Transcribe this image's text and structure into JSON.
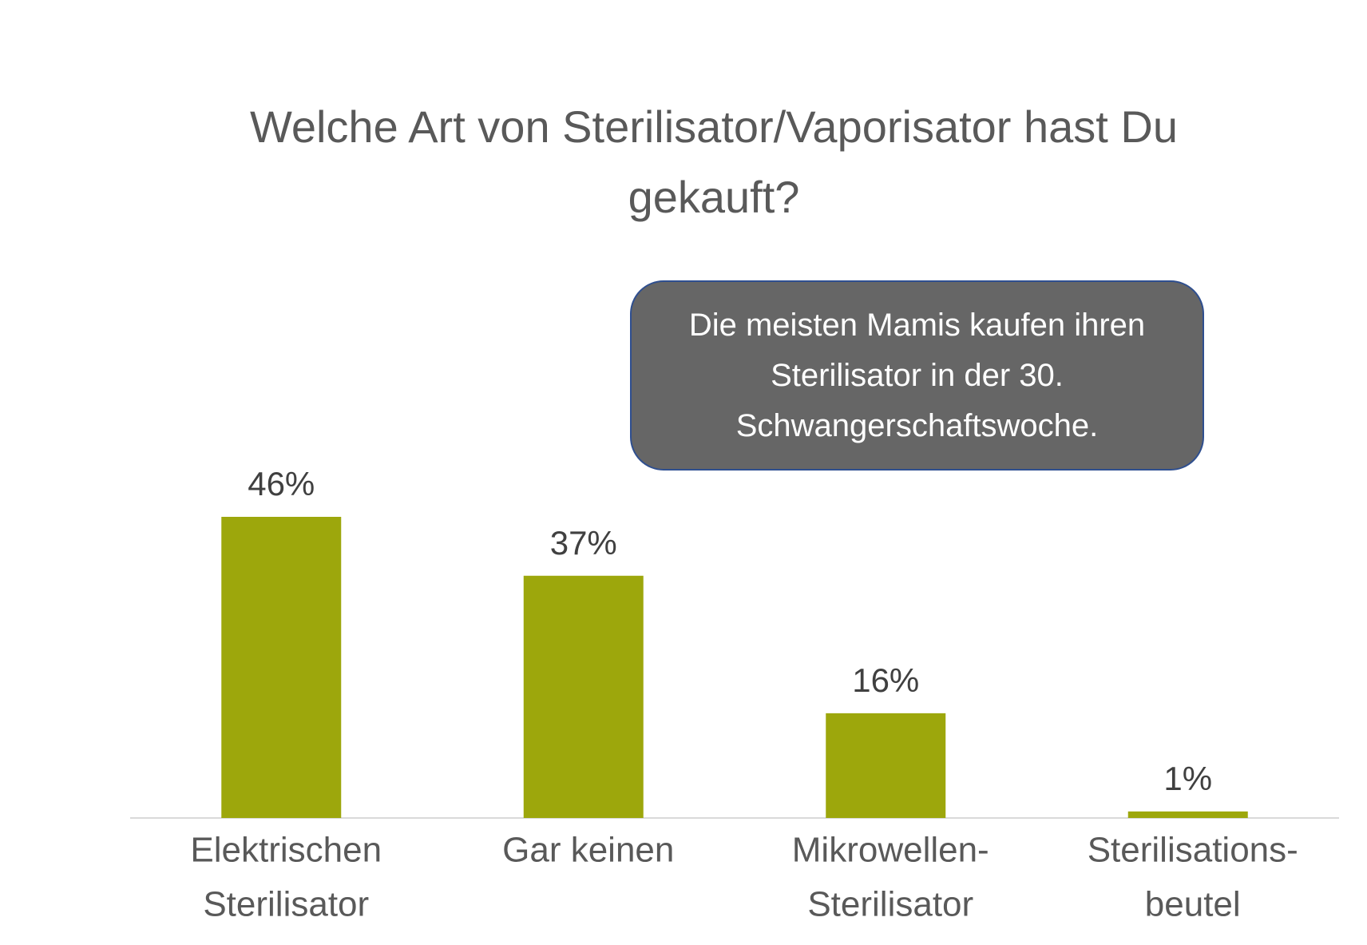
{
  "chart_data": {
    "type": "bar",
    "title": "Welche Art von Sterilisator/Vaporisator hast Du gekauft?",
    "annotation": "Die meisten Mamis kaufen ihren Sterilisator in der 30. Schwangerschaftswoche.",
    "categories": [
      [
        "Elektrischen",
        "Sterilisator"
      ],
      [
        "Gar keinen"
      ],
      [
        "Mikrowellen-",
        "Sterilisator"
      ],
      [
        "Sterilisations-",
        "beutel"
      ]
    ],
    "values": [
      46,
      37,
      16,
      1
    ],
    "value_labels": [
      "46%",
      "37%",
      "16%",
      "1%"
    ],
    "color": "#9da70c"
  }
}
